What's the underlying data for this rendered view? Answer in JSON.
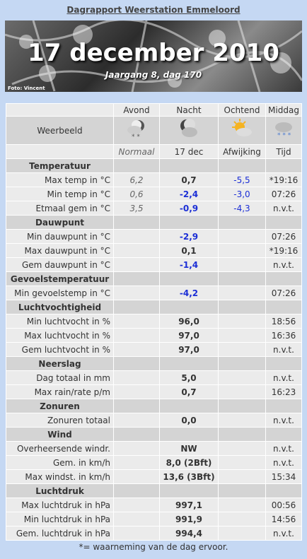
{
  "header": {
    "title": "Dagrapport Weerstation Emmeloord"
  },
  "banner": {
    "date": "17 december 2010",
    "subtitle": "Jaargang 8, dag 170",
    "credit": "Foto: Vincent"
  },
  "table": {
    "columns": [
      "Avond",
      "Nacht",
      "Ochtend",
      "Middag"
    ],
    "weerbeeld": "Weerbeeld",
    "subheader": [
      "Normaal",
      "17 dec",
      "Afwijking",
      "Tijd"
    ],
    "sections": [
      {
        "title": "Temperatuur",
        "rows": [
          [
            "Max temp in °C",
            "6,2",
            "0,7",
            "-5,5",
            "*19:16"
          ],
          [
            "Min temp in °C",
            "0,6",
            "-2,4",
            "-3,0",
            "07:26"
          ],
          [
            "Etmaal gem in °C",
            "3,5",
            "-0,9",
            "-4,3",
            "n.v.t."
          ]
        ]
      },
      {
        "title": "Dauwpunt",
        "rows": [
          [
            "Min dauwpunt in °C",
            null,
            "-2,9",
            null,
            "07:26"
          ],
          [
            "Max dauwpunt in °C",
            null,
            "0,1",
            null,
            "*19:16"
          ],
          [
            "Gem dauwpunt in °C",
            null,
            "-1,4",
            null,
            "n.v.t."
          ]
        ]
      },
      {
        "title": "Gevoelstemperatuur",
        "rows": [
          [
            "Min gevoelstemp in °C",
            null,
            "-4,2",
            null,
            "07:26"
          ]
        ]
      },
      {
        "title": "Luchtvochtigheid",
        "rows": [
          [
            "Min luchtvocht in %",
            null,
            "96,0",
            null,
            "18:56"
          ],
          [
            "Max luchtvocht in %",
            null,
            "97,0",
            null,
            "16:36"
          ],
          [
            "Gem luchtvocht in %",
            null,
            "97,0",
            null,
            "n.v.t."
          ]
        ]
      },
      {
        "title": "Neerslag",
        "rows": [
          [
            "Dag totaal in mm",
            null,
            "5,0",
            null,
            "n.v.t."
          ],
          [
            "Max rain/rate p/m",
            null,
            "0,7",
            null,
            "16:23"
          ]
        ]
      },
      {
        "title": "Zonuren",
        "rows": [
          [
            "Zonuren totaal",
            null,
            "0,0",
            null,
            "n.v.t."
          ]
        ]
      },
      {
        "title": "Wind",
        "rows": [
          [
            "Overheersende windr.",
            null,
            "NW",
            null,
            "n.v.t."
          ],
          [
            "Gem. in km/h",
            null,
            "8,0 (2Bft)",
            null,
            "n.v.t."
          ],
          [
            "Max windst. in km/h",
            null,
            "13,6 (3Bft)",
            null,
            "15:34"
          ]
        ]
      },
      {
        "title": "Luchtdruk",
        "rows": [
          [
            "Max luchtdruk in hPa",
            null,
            "997,1",
            null,
            "00:56"
          ],
          [
            "Min luchtdruk in hPa",
            null,
            "991,9",
            null,
            "14:56"
          ],
          [
            "Gem. luchtdruk in hPa",
            null,
            "994,4",
            null,
            "n.v.t."
          ]
        ]
      }
    ]
  },
  "footnote": "*= waarneming van de dag ervoor."
}
